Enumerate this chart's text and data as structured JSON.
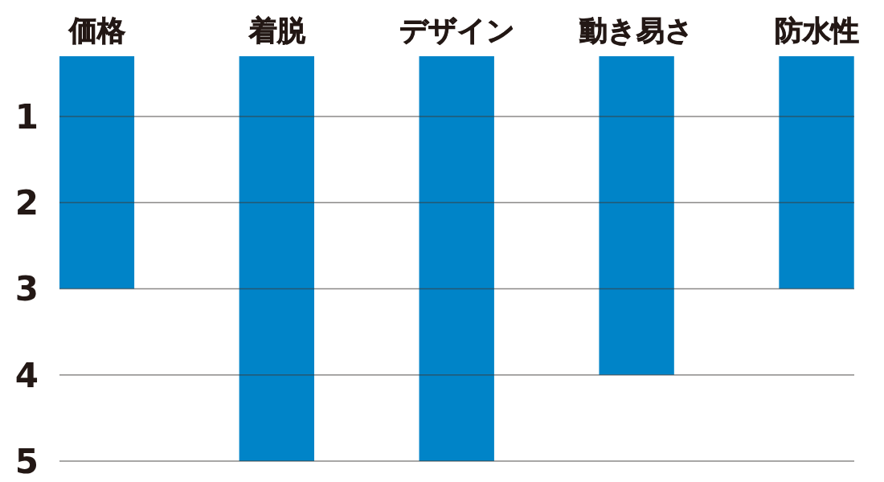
{
  "chart_data": {
    "type": "bar",
    "categories": [
      "価格",
      "着脱",
      "デザイン",
      "動き易さ",
      "防水性"
    ],
    "values": [
      3,
      5,
      5,
      4,
      3
    ],
    "color": "#0084c8",
    "ylim": [
      5,
      0.3
    ],
    "yticks": [
      1,
      2,
      3,
      4,
      5
    ],
    "grid": "y"
  }
}
